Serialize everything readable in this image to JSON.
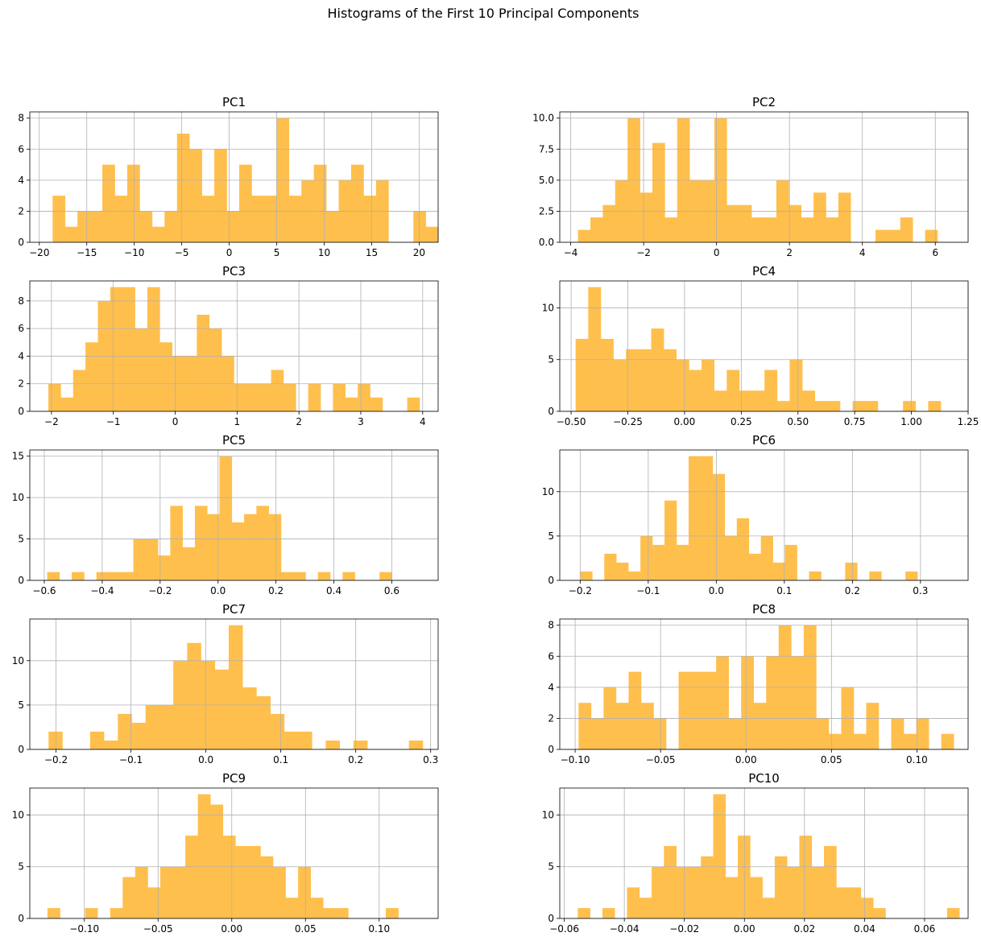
{
  "figure": {
    "title": "Histograms of the First 10 Principal Components",
    "bar_color": "#ffbf4d",
    "grid_color": "#b0b0b0"
  },
  "chart_data": [
    {
      "type": "bar",
      "title": "PC1",
      "xlim": [
        -21,
        22
      ],
      "ylim": [
        0,
        8.4
      ],
      "xticks": [
        -20,
        -15,
        -10,
        -5,
        0,
        5,
        10,
        15,
        20
      ],
      "yticks": [
        0,
        2,
        4,
        6,
        8
      ],
      "bin_start": -18.6,
      "bin_width": 1.31,
      "values": [
        3,
        1,
        2,
        2,
        5,
        3,
        5,
        2,
        1,
        2,
        7,
        6,
        3,
        6,
        2,
        5,
        3,
        3,
        8,
        3,
        4,
        5,
        2,
        4,
        5,
        3,
        4,
        0,
        0,
        2,
        1
      ]
    },
    {
      "type": "bar",
      "title": "PC2",
      "xlim": [
        -4.3,
        6.9
      ],
      "ylim": [
        0,
        10.5
      ],
      "xticks": [
        -4,
        -2,
        0,
        2,
        4,
        6
      ],
      "yticks": [
        0,
        2.5,
        5.0,
        7.5,
        10.0
      ],
      "ytick_labels": [
        "0.0",
        "2.5",
        "5.0",
        "7.5",
        "10.0"
      ],
      "bin_start": -3.8,
      "bin_width": 0.34,
      "values": [
        1,
        2,
        3,
        5,
        10,
        4,
        8,
        2,
        10,
        5,
        5,
        10,
        3,
        3,
        2,
        2,
        5,
        3,
        2,
        4,
        2,
        4,
        0,
        0,
        1,
        1,
        2,
        0,
        1
      ]
    },
    {
      "type": "bar",
      "title": "PC3",
      "xlim": [
        -2.35,
        4.25
      ],
      "ylim": [
        0,
        9.45
      ],
      "xticks": [
        -2,
        -1,
        0,
        1,
        2,
        3,
        4
      ],
      "yticks": [
        0,
        2,
        4,
        6,
        8
      ],
      "bin_start": -2.05,
      "bin_width": 0.2,
      "values": [
        2,
        1,
        3,
        5,
        8,
        9,
        9,
        6,
        9,
        5,
        4,
        4,
        7,
        6,
        4,
        2,
        2,
        2,
        3,
        2,
        0,
        2,
        0,
        2,
        1,
        2,
        1,
        0,
        0,
        1
      ]
    },
    {
      "type": "bar",
      "title": "PC4",
      "xlim": [
        -0.55,
        1.25
      ],
      "ylim": [
        0,
        12.6
      ],
      "xticks": [
        -0.5,
        -0.25,
        0.0,
        0.25,
        0.5,
        0.75,
        1.0,
        1.25
      ],
      "xtick_labels": [
        "−0.50",
        "−0.25",
        "0.00",
        "0.25",
        "0.50",
        "0.75",
        "1.00",
        "1.25"
      ],
      "yticks": [
        0,
        5,
        10
      ],
      "bin_start": -0.48,
      "bin_width": 0.0555,
      "values": [
        7,
        12,
        7,
        5,
        6,
        6,
        8,
        6,
        5,
        4,
        5,
        2,
        4,
        2,
        2,
        4,
        1,
        5,
        2,
        1,
        1,
        0,
        1,
        1,
        0,
        0,
        1,
        0,
        1
      ]
    },
    {
      "type": "bar",
      "title": "PC5",
      "xlim": [
        -0.65,
        0.76
      ],
      "ylim": [
        0,
        15.75
      ],
      "xticks": [
        -0.6,
        -0.4,
        -0.2,
        0.0,
        0.2,
        0.4,
        0.6
      ],
      "xtick_labels": [
        "−0.6",
        "−0.4",
        "−0.2",
        "0.0",
        "0.2",
        "0.4",
        "0.6"
      ],
      "yticks": [
        0,
        5,
        10,
        15
      ],
      "bin_start": -0.59,
      "bin_width": 0.0425,
      "values": [
        1,
        0,
        1,
        0,
        1,
        1,
        1,
        5,
        5,
        3,
        9,
        4,
        9,
        8,
        15,
        7,
        8,
        9,
        8,
        1,
        1,
        0,
        1,
        0,
        1,
        0,
        0,
        1
      ]
    },
    {
      "type": "bar",
      "title": "PC6",
      "xlim": [
        -0.23,
        0.37
      ],
      "ylim": [
        0,
        14.7
      ],
      "xticks": [
        -0.2,
        -0.1,
        0.0,
        0.1,
        0.2,
        0.3
      ],
      "xtick_labels": [
        "−0.2",
        "−0.1",
        "0.0",
        "0.1",
        "0.2",
        "0.3"
      ],
      "yticks": [
        0,
        5,
        10
      ],
      "bin_start": -0.2,
      "bin_width": 0.0177,
      "values": [
        1,
        0,
        3,
        2,
        1,
        5,
        4,
        9,
        4,
        14,
        14,
        12,
        5,
        7,
        3,
        5,
        2,
        4,
        0,
        1,
        0,
        0,
        2,
        0,
        1,
        0,
        0,
        1
      ]
    },
    {
      "type": "bar",
      "title": "PC7",
      "xlim": [
        -0.235,
        0.31
      ],
      "ylim": [
        0,
        14.7
      ],
      "xticks": [
        -0.2,
        -0.1,
        0.0,
        0.1,
        0.2,
        0.3
      ],
      "xtick_labels": [
        "−0.2",
        "−0.1",
        "0.0",
        "0.1",
        "0.2",
        "0.3"
      ],
      "yticks": [
        0,
        5,
        10
      ],
      "bin_start": -0.21,
      "bin_width": 0.0185,
      "values": [
        2,
        0,
        0,
        2,
        1,
        4,
        3,
        5,
        5,
        10,
        12,
        10,
        9,
        14,
        7,
        6,
        4,
        2,
        2,
        0,
        1,
        0,
        1,
        0,
        0,
        0,
        1
      ]
    },
    {
      "type": "bar",
      "title": "PC8",
      "xlim": [
        -0.109,
        0.13
      ],
      "ylim": [
        0,
        8.4
      ],
      "xticks": [
        -0.1,
        -0.05,
        0.0,
        0.05,
        0.1
      ],
      "xtick_labels": [
        "−0.10",
        "−0.05",
        "0.00",
        "0.05",
        "0.10"
      ],
      "yticks": [
        0,
        2,
        4,
        6,
        8
      ],
      "bin_start": -0.098,
      "bin_width": 0.00732,
      "values": [
        3,
        2,
        4,
        3,
        5,
        3,
        2,
        0,
        5,
        5,
        5,
        6,
        2,
        6,
        3,
        6,
        8,
        6,
        8,
        2,
        1,
        4,
        1,
        3,
        0,
        2,
        1,
        2,
        0,
        1
      ]
    },
    {
      "type": "bar",
      "title": "PC9",
      "xlim": [
        -0.137,
        0.14
      ],
      "ylim": [
        0,
        12.6
      ],
      "xticks": [
        -0.1,
        -0.05,
        0.0,
        0.05,
        0.1
      ],
      "xtick_labels": [
        "−0.10",
        "−0.05",
        "0.00",
        "0.05",
        "0.10"
      ],
      "yticks": [
        0,
        5,
        10
      ],
      "bin_start": -0.125,
      "bin_width": 0.0085,
      "values": [
        1,
        0,
        0,
        1,
        0,
        1,
        4,
        5,
        3,
        5,
        5,
        8,
        12,
        11,
        8,
        7,
        7,
        6,
        5,
        2,
        5,
        2,
        1,
        1,
        0,
        0,
        0,
        1
      ]
    },
    {
      "type": "bar",
      "title": "PC10",
      "xlim": [
        -0.0615,
        0.0745
      ],
      "ylim": [
        0,
        12.6
      ],
      "xticks": [
        -0.06,
        -0.04,
        -0.02,
        0.0,
        0.02,
        0.04,
        0.06
      ],
      "xtick_labels": [
        "−0.06",
        "−0.04",
        "−0.02",
        "0.00",
        "0.02",
        "0.04",
        "0.06"
      ],
      "yticks": [
        0,
        5,
        10
      ],
      "bin_start": -0.0555,
      "bin_width": 0.0041,
      "values": [
        1,
        0,
        1,
        0,
        3,
        2,
        5,
        7,
        5,
        5,
        6,
        12,
        4,
        8,
        4,
        2,
        6,
        5,
        8,
        5,
        7,
        3,
        3,
        2,
        1,
        0,
        0,
        0,
        0,
        0,
        1
      ]
    }
  ]
}
